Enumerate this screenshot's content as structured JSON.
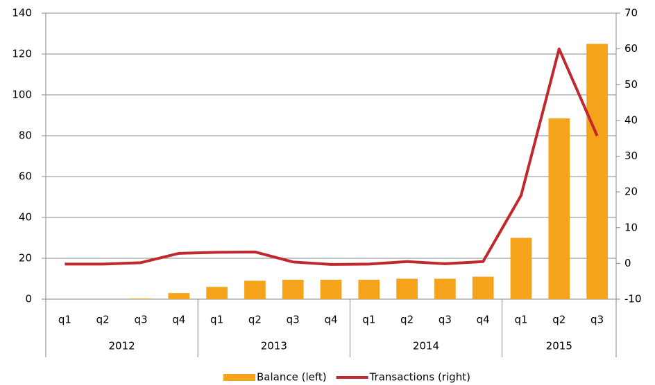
{
  "chart_data": {
    "type": "bar-line",
    "groups": [
      {
        "name": "2012",
        "categories": [
          "q1",
          "q2",
          "q3",
          "q4"
        ]
      },
      {
        "name": "2013",
        "categories": [
          "q1",
          "q2",
          "q3",
          "q4"
        ]
      },
      {
        "name": "2014",
        "categories": [
          "q1",
          "q2",
          "q3",
          "q4"
        ]
      },
      {
        "name": "2015",
        "categories": [
          "q1",
          "q2",
          "q3"
        ]
      }
    ],
    "series": [
      {
        "name": "Balance (left)",
        "type": "bar",
        "axis": "y",
        "color": "#f5a31a",
        "values": [
          0,
          0,
          0.3,
          3,
          6,
          9,
          9.5,
          9.5,
          9.5,
          10,
          10,
          11,
          30,
          88.5,
          125
        ]
      },
      {
        "name": "Transactions (right)",
        "type": "line",
        "axis": "y2",
        "color": "#c0282d",
        "values": [
          -0.2,
          -0.2,
          0.2,
          2.8,
          3.1,
          3.2,
          0.4,
          -0.3,
          -0.2,
          0.5,
          -0.1,
          0.5,
          19,
          60,
          35.7
        ]
      }
    ],
    "ylim": [
      0,
      140
    ],
    "yticks": [
      0,
      20,
      40,
      60,
      80,
      100,
      120,
      140
    ],
    "y2lim": [
      -10,
      70
    ],
    "y2ticks": [
      -10,
      0,
      10,
      20,
      30,
      40,
      50,
      60,
      70
    ],
    "grid": true,
    "legend": "bottom"
  }
}
